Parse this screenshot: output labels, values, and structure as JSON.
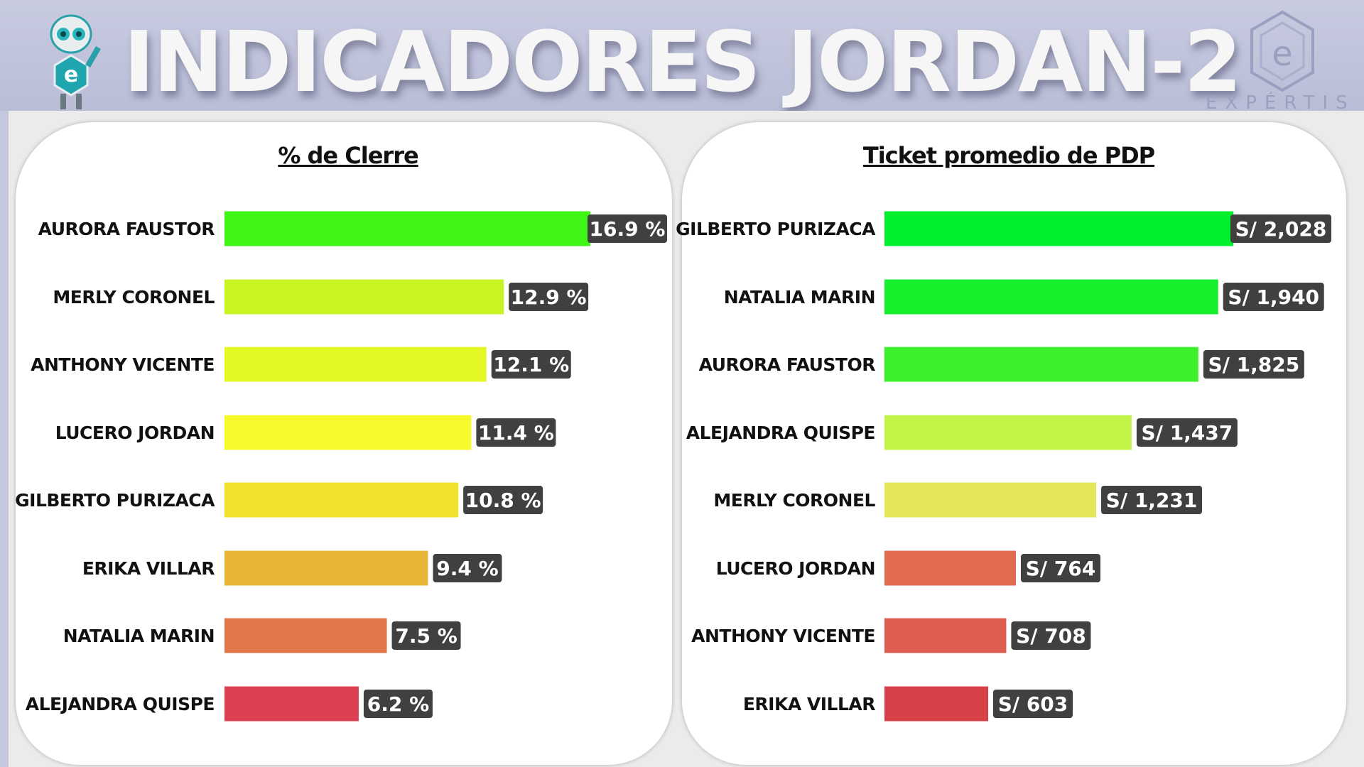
{
  "header": {
    "title": "INDICADORES JORDAN-2",
    "logo_text": "EXPÉRTIS"
  },
  "chart_data": [
    {
      "type": "bar",
      "orientation": "horizontal",
      "title": "% de Clerre",
      "categories": [
        "AURORA FAUSTOR",
        "MERLY CORONEL",
        "ANTHONY VICENTE",
        "LUCERO JORDAN",
        "GILBERTO PURIZACA",
        "ERIKA VILLAR",
        "NATALIA MARIN",
        "ALEJANDRA QUISPE"
      ],
      "values": [
        16.9,
        12.9,
        12.1,
        11.4,
        10.8,
        9.4,
        7.5,
        6.2
      ],
      "data_labels": [
        "16.9 %",
        "12.9 %",
        "12.1 %",
        "11.4 %",
        "10.8 %",
        "9.4 %",
        "7.5 %",
        "6.2 %"
      ],
      "colors": [
        "#3ef516",
        "#c8f521",
        "#e4f826",
        "#f6fa2a",
        "#f1e12b",
        "#e9b535",
        "#e27749",
        "#db4150"
      ],
      "xlim": [
        0,
        16.9
      ],
      "grid": false
    },
    {
      "type": "bar",
      "orientation": "horizontal",
      "title": "Ticket promedio de PDP",
      "categories": [
        "GILBERTO PURIZACA",
        "NATALIA MARIN",
        "AURORA FAUSTOR",
        "ALEJANDRA QUISPE",
        "MERLY CORONEL",
        "LUCERO JORDAN",
        "ANTHONY VICENTE",
        "ERIKA VILLAR"
      ],
      "values": [
        2028,
        1940,
        1825,
        1437,
        1231,
        764,
        708,
        603
      ],
      "data_labels": [
        "S/ 2,028",
        "S/ 1,940",
        "S/ 1,825",
        "S/ 1,437",
        "S/ 1,231",
        "S/ 764",
        "S/ 708",
        "S/ 603"
      ],
      "colors": [
        "#00f02e",
        "#14f02c",
        "#3cf02a",
        "#c2f548",
        "#e6e65a",
        "#e06b50",
        "#df5c50",
        "#d84048"
      ],
      "xlim": [
        0,
        2028
      ],
      "grid": false
    }
  ]
}
